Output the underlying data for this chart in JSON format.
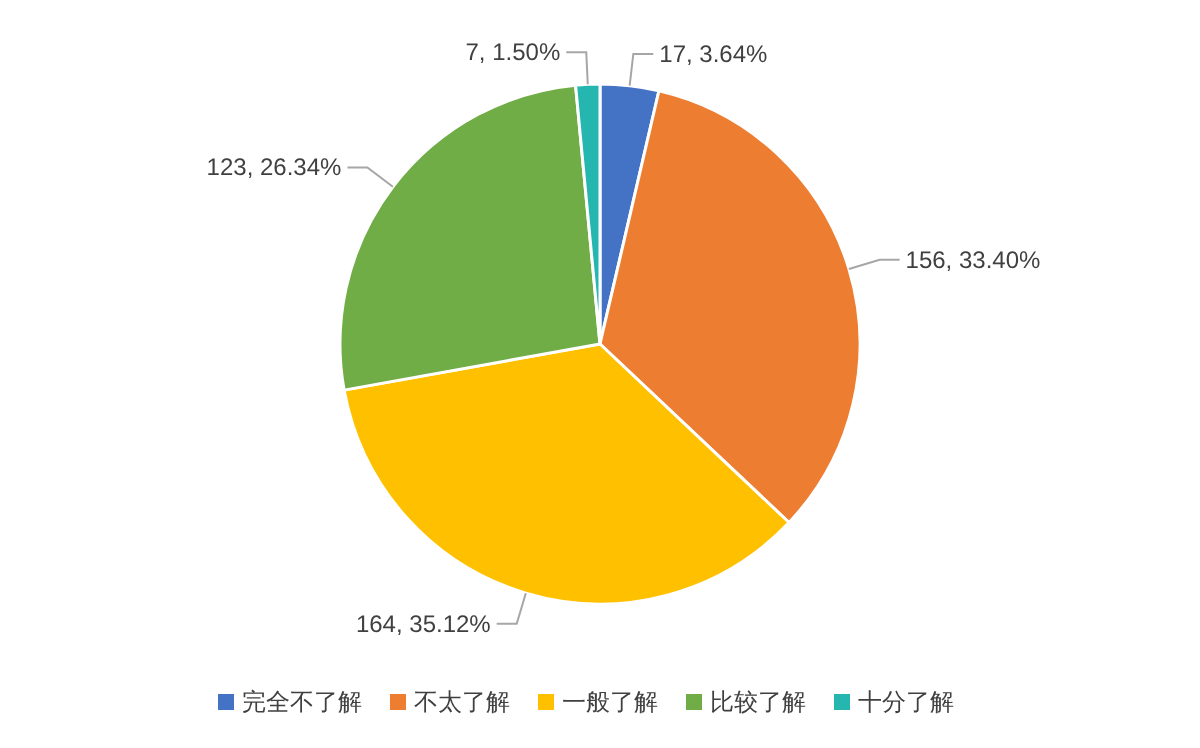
{
  "chart_data": {
    "type": "pie",
    "categories": [
      "完全不了解",
      "不太了解",
      "一般了解",
      "比较了解",
      "十分了解"
    ],
    "values": [
      17,
      156,
      164,
      123,
      7
    ],
    "colors": [
      "#4472c4",
      "#ed7d31",
      "#ffc000",
      "#70ad47",
      "#26b6b0"
    ],
    "value_labels": [
      "17, 3.64%",
      "156, 33.40%",
      "164, 35.12%",
      "123, 26.34%",
      "7, 1.50%"
    ],
    "legend": "bottom"
  }
}
